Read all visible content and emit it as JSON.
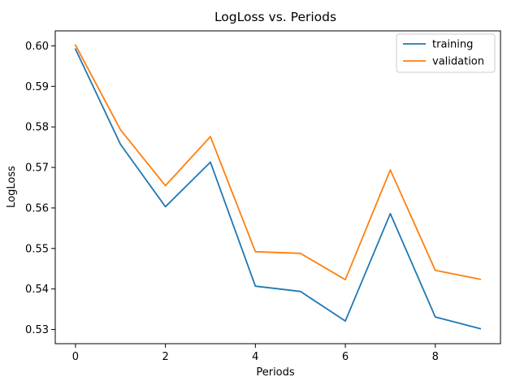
{
  "chart_data": {
    "type": "line",
    "title": "LogLoss vs. Periods",
    "xlabel": "Periods",
    "ylabel": "LogLoss",
    "x": [
      0,
      1,
      2,
      3,
      4,
      5,
      6,
      7,
      8,
      9
    ],
    "xlim": [
      -0.45,
      9.45
    ],
    "ylim": [
      0.5265,
      0.6037
    ],
    "xticks": [
      0,
      2,
      4,
      6,
      8
    ],
    "xtick_labels": [
      "0",
      "2",
      "4",
      "6",
      "8"
    ],
    "yticks": [
      0.53,
      0.54,
      0.55,
      0.56,
      0.57,
      0.58,
      0.59,
      0.6
    ],
    "ytick_labels": [
      "0.53",
      "0.54",
      "0.55",
      "0.56",
      "0.57",
      "0.58",
      "0.59",
      "0.60"
    ],
    "grid": false,
    "legend_position": "top-right",
    "series": [
      {
        "name": "training",
        "color": "#1f77b4",
        "values": [
          0.5992,
          0.5757,
          0.5603,
          0.5713,
          0.5407,
          0.5394,
          0.5321,
          0.5586,
          0.5331,
          0.5302
        ]
      },
      {
        "name": "validation",
        "color": "#ff7f0e",
        "values": [
          0.6002,
          0.5793,
          0.5655,
          0.5776,
          0.5492,
          0.5488,
          0.5423,
          0.5694,
          0.5446,
          0.5424
        ]
      }
    ]
  }
}
